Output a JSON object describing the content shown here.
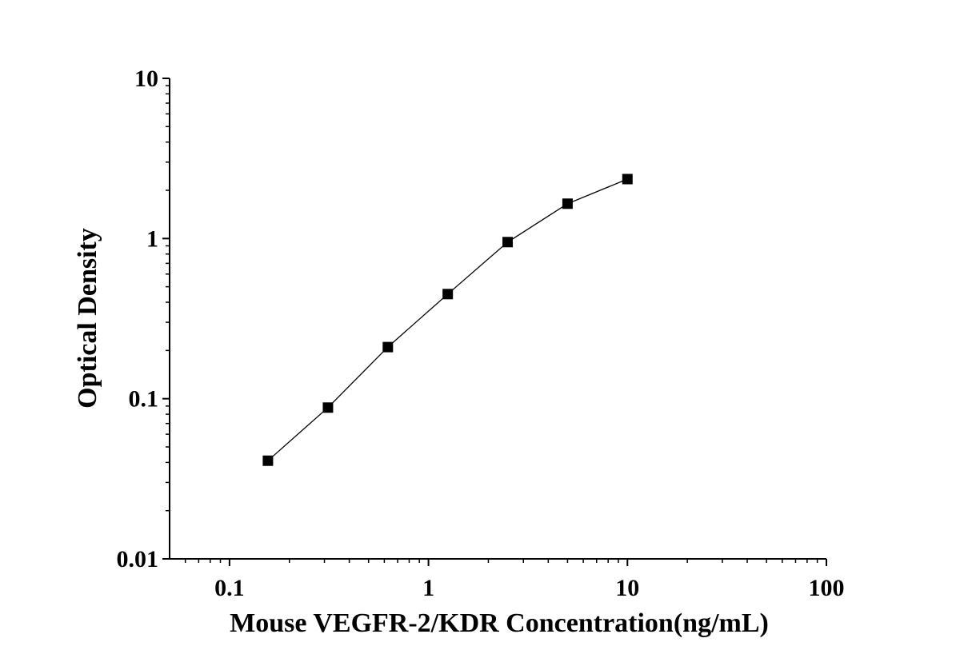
{
  "chart_data": {
    "type": "line",
    "title": "",
    "xlabel": "Mouse VEGFR-2/KDR Concentration(ng/mL)",
    "ylabel": "Optical Density",
    "x_scale": "log",
    "y_scale": "log",
    "xlim": [
      0.05,
      100
    ],
    "ylim": [
      0.01,
      10
    ],
    "x_ticks": [
      {
        "value": 0.1,
        "label": "0.1"
      },
      {
        "value": 1,
        "label": "1"
      },
      {
        "value": 10,
        "label": "10"
      },
      {
        "value": 100,
        "label": "100"
      }
    ],
    "y_ticks": [
      {
        "value": 0.01,
        "label": "0.01"
      },
      {
        "value": 0.1,
        "label": "0.1"
      },
      {
        "value": 1,
        "label": "1"
      },
      {
        "value": 10,
        "label": "10"
      }
    ],
    "grid": false,
    "legend": "none",
    "series": [
      {
        "marker": "square",
        "color": "#000000",
        "x": [
          0.156,
          0.3125,
          0.625,
          1.25,
          2.5,
          5,
          10
        ],
        "y": [
          0.041,
          0.088,
          0.21,
          0.45,
          0.95,
          1.65,
          2.35
        ]
      }
    ]
  }
}
